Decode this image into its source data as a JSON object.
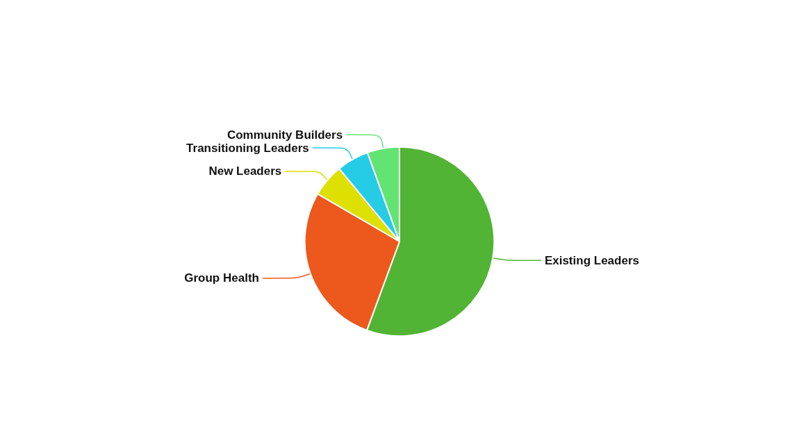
{
  "chart_data": {
    "type": "pie",
    "categories": [
      "Existing Leaders",
      "Group Health",
      "New Leaders",
      "Transitioning Leaders",
      "Community Builders"
    ],
    "values": [
      55.6,
      27.8,
      5.6,
      5.5,
      5.5
    ],
    "colors": [
      "#52b434",
      "#ed581d",
      "#dde000",
      "#26cbe6",
      "#63e472"
    ],
    "legend": false
  }
}
